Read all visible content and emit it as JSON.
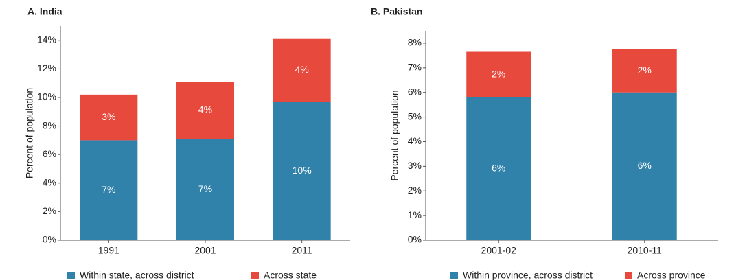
{
  "chart_data": [
    {
      "type": "bar",
      "stacked": true,
      "title": "A. India",
      "y_label": "Percent of population",
      "categories": [
        "1991",
        "2001",
        "2011"
      ],
      "series": [
        {
          "name": "Within state, across district",
          "color": "#3182ab",
          "values": [
            7.0,
            7.1,
            9.7
          ],
          "value_labels": [
            "7%",
            "7%",
            "10%"
          ]
        },
        {
          "name": "Across state",
          "color": "#e8493d",
          "values": [
            3.2,
            4.0,
            4.4
          ],
          "value_labels": [
            "3%",
            "4%",
            "4%"
          ]
        }
      ],
      "ylim": [
        0,
        15
      ],
      "yticks": [
        {
          "value": 0,
          "label": "0%"
        },
        {
          "value": 2,
          "label": "2%"
        },
        {
          "value": 4,
          "label": "4%"
        },
        {
          "value": 6,
          "label": "6%"
        },
        {
          "value": 8,
          "label": "8%"
        },
        {
          "value": 10,
          "label": "10%"
        },
        {
          "value": 12,
          "label": "12%"
        },
        {
          "value": 14,
          "label": "14%"
        }
      ]
    },
    {
      "type": "bar",
      "stacked": true,
      "title": "B. Pakistan",
      "y_label": "Percent of population",
      "categories": [
        "2001-02",
        "2010-11"
      ],
      "series": [
        {
          "name": "Within province, across district",
          "color": "#3182ab",
          "values": [
            5.8,
            6.0
          ],
          "value_labels": [
            "6%",
            "6%"
          ]
        },
        {
          "name": "Across province",
          "color": "#e8493d",
          "values": [
            1.85,
            1.75
          ],
          "value_labels": [
            "2%",
            "2%"
          ]
        }
      ],
      "ylim": [
        0,
        8.5
      ],
      "yticks": [
        {
          "value": 0,
          "label": "0%"
        },
        {
          "value": 1,
          "label": "1%"
        },
        {
          "value": 2,
          "label": "2%"
        },
        {
          "value": 3,
          "label": "3%"
        },
        {
          "value": 4,
          "label": "4%"
        },
        {
          "value": 5,
          "label": "5%"
        },
        {
          "value": 6,
          "label": "6%"
        },
        {
          "value": 7,
          "label": "7%"
        },
        {
          "value": 8,
          "label": "8%"
        }
      ]
    }
  ]
}
